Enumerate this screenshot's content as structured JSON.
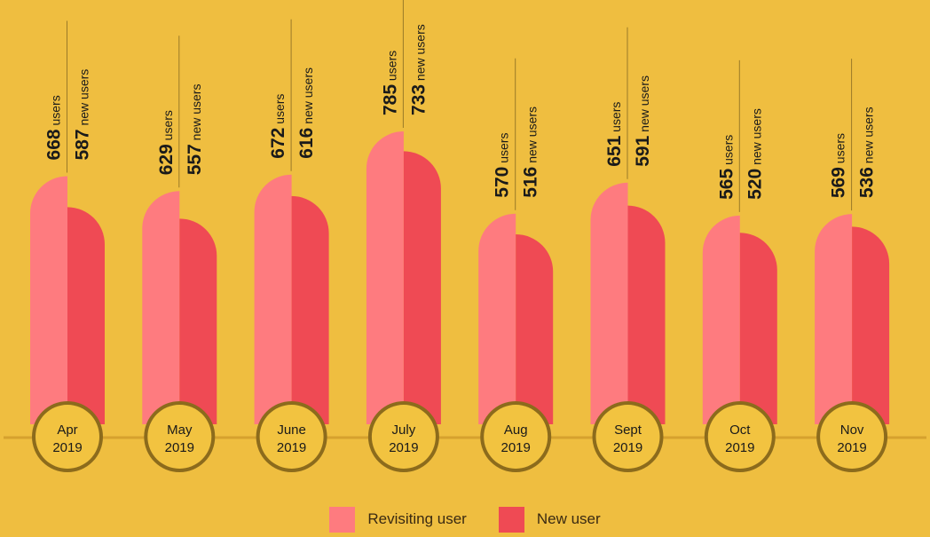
{
  "chart_data": {
    "type": "bar",
    "categories": [
      {
        "month": "Apr",
        "year": "2019"
      },
      {
        "month": "May",
        "year": "2019"
      },
      {
        "month": "June",
        "year": "2019"
      },
      {
        "month": "July",
        "year": "2019"
      },
      {
        "month": "Aug",
        "year": "2019"
      },
      {
        "month": "Sept",
        "year": "2019"
      },
      {
        "month": "Oct",
        "year": "2019"
      },
      {
        "month": "Nov",
        "year": "2019"
      }
    ],
    "series": [
      {
        "name": "Revisiting user",
        "unit": "users",
        "color": "#fe7b7f",
        "values": [
          668,
          629,
          672,
          785,
          570,
          651,
          565,
          569
        ]
      },
      {
        "name": "New user",
        "unit": "new users",
        "color": "#ef4a54",
        "values": [
          587,
          557,
          616,
          733,
          516,
          591,
          520,
          536
        ]
      }
    ],
    "legend_position": "bottom-center",
    "grid": false
  },
  "colors": {
    "background": "#efbe40",
    "baseline": "#d6a12e",
    "badge_fill": "#f2c340",
    "badge_ring": "#8c6b1c",
    "label_line": "#9a7a28",
    "text": "#1a1a1a"
  }
}
